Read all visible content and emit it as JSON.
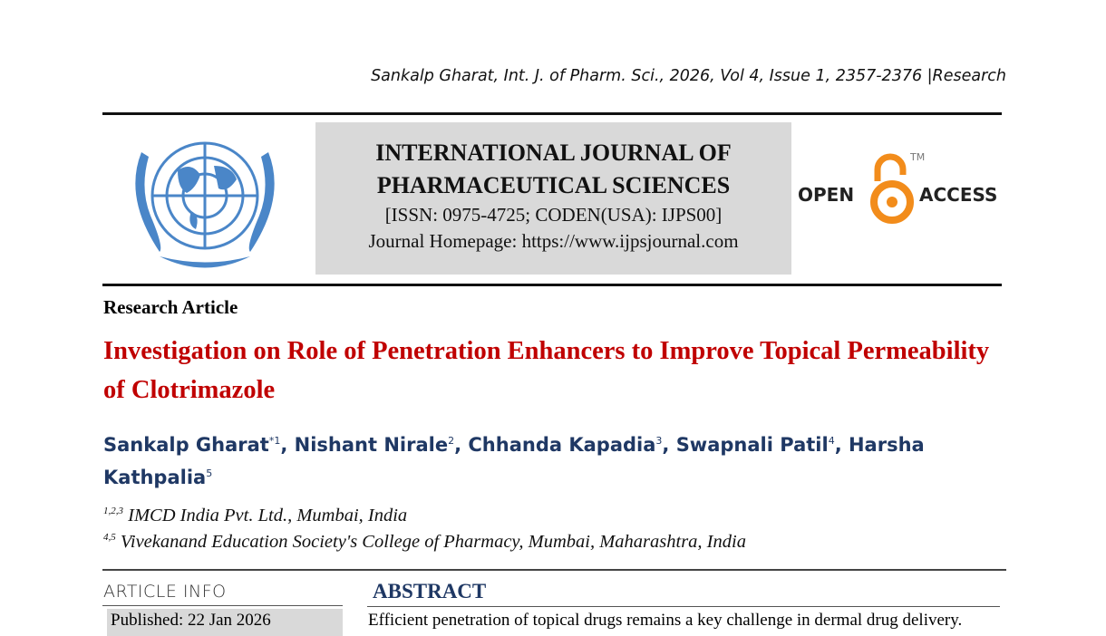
{
  "citation": "Sankalp Gharat, Int. J. of Pharm. Sci., 2026, Vol 4, Issue 1, 2357-2376 |Research",
  "journal": {
    "name_line1": "INTERNATIONAL JOURNAL OF",
    "name_line2": "PHARMACEUTICAL SCIENCES",
    "issn": "[ISSN: 0975-4725; CODEN(USA): IJPS00]",
    "homepage": "Journal Homepage: https://www.ijpsjournal.com"
  },
  "open_access": {
    "open": "OPEN",
    "access": "ACCESS",
    "tm": "TM",
    "color": "#f28c1b"
  },
  "article_type": "Research Article",
  "title": "Investigation on Role of Penetration Enhancers to Improve Topical Permeability of Clotrimazole",
  "authors": [
    {
      "name": "Sankalp Gharat",
      "sup": "*1"
    },
    {
      "name": "Nishant Nirale",
      "sup": "2"
    },
    {
      "name": "Chhanda Kapadia",
      "sup": "3"
    },
    {
      "name": "Swapnali Patil",
      "sup": "4"
    },
    {
      "name": "Harsha Kathpalia",
      "sup": "5"
    }
  ],
  "affiliations": [
    {
      "sup": "1,2,3",
      "text": "IMCD India Pvt. Ltd., Mumbai, India"
    },
    {
      "sup": "4,5",
      "text": "Vivekanand Education Society's College of Pharmacy, Mumbai, Maharashtra, India"
    }
  ],
  "article_info": {
    "heading": "ARTICLE INFO",
    "published": "Published:  22 Jan 2026"
  },
  "abstract": {
    "heading": "ABSTRACT",
    "text": "Efficient penetration of topical drugs remains a key challenge in dermal drug delivery."
  }
}
